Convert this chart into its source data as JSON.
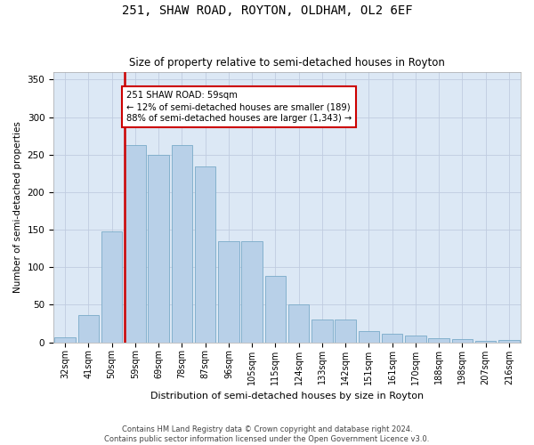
{
  "title": "251, SHAW ROAD, ROYTON, OLDHAM, OL2 6EF",
  "subtitle": "Size of property relative to semi-detached houses in Royton",
  "xlabel": "Distribution of semi-detached houses by size in Royton",
  "ylabel": "Number of semi-detached properties",
  "footer1": "Contains HM Land Registry data © Crown copyright and database right 2024.",
  "footer2": "Contains public sector information licensed under the Open Government Licence v3.0.",
  "categories": [
    "32sqm",
    "41sqm",
    "50sqm",
    "59sqm",
    "69sqm",
    "78sqm",
    "87sqm",
    "96sqm",
    "105sqm",
    "115sqm",
    "124sqm",
    "133sqm",
    "142sqm",
    "151sqm",
    "161sqm",
    "170sqm",
    "188sqm",
    "198sqm",
    "207sqm",
    "216sqm"
  ],
  "values": [
    7,
    36,
    148,
    263,
    250,
    263,
    234,
    135,
    135,
    88,
    50,
    30,
    30,
    15,
    12,
    9,
    5,
    4,
    2,
    3
  ],
  "highlight_index": 3,
  "highlight_color": "#cc0000",
  "bar_color": "#b8d0e8",
  "bar_edge_color": "#7aaac8",
  "annotation_text": "251 SHAW ROAD: 59sqm\n← 12% of semi-detached houses are smaller (189)\n88% of semi-detached houses are larger (1,343) →",
  "annotation_box_facecolor": "#ffffff",
  "annotation_box_edge": "#cc0000",
  "ylim": [
    0,
    360
  ],
  "background_color": "#ffffff",
  "plot_bg_color": "#dce8f5",
  "grid_color": "#c0cce0"
}
